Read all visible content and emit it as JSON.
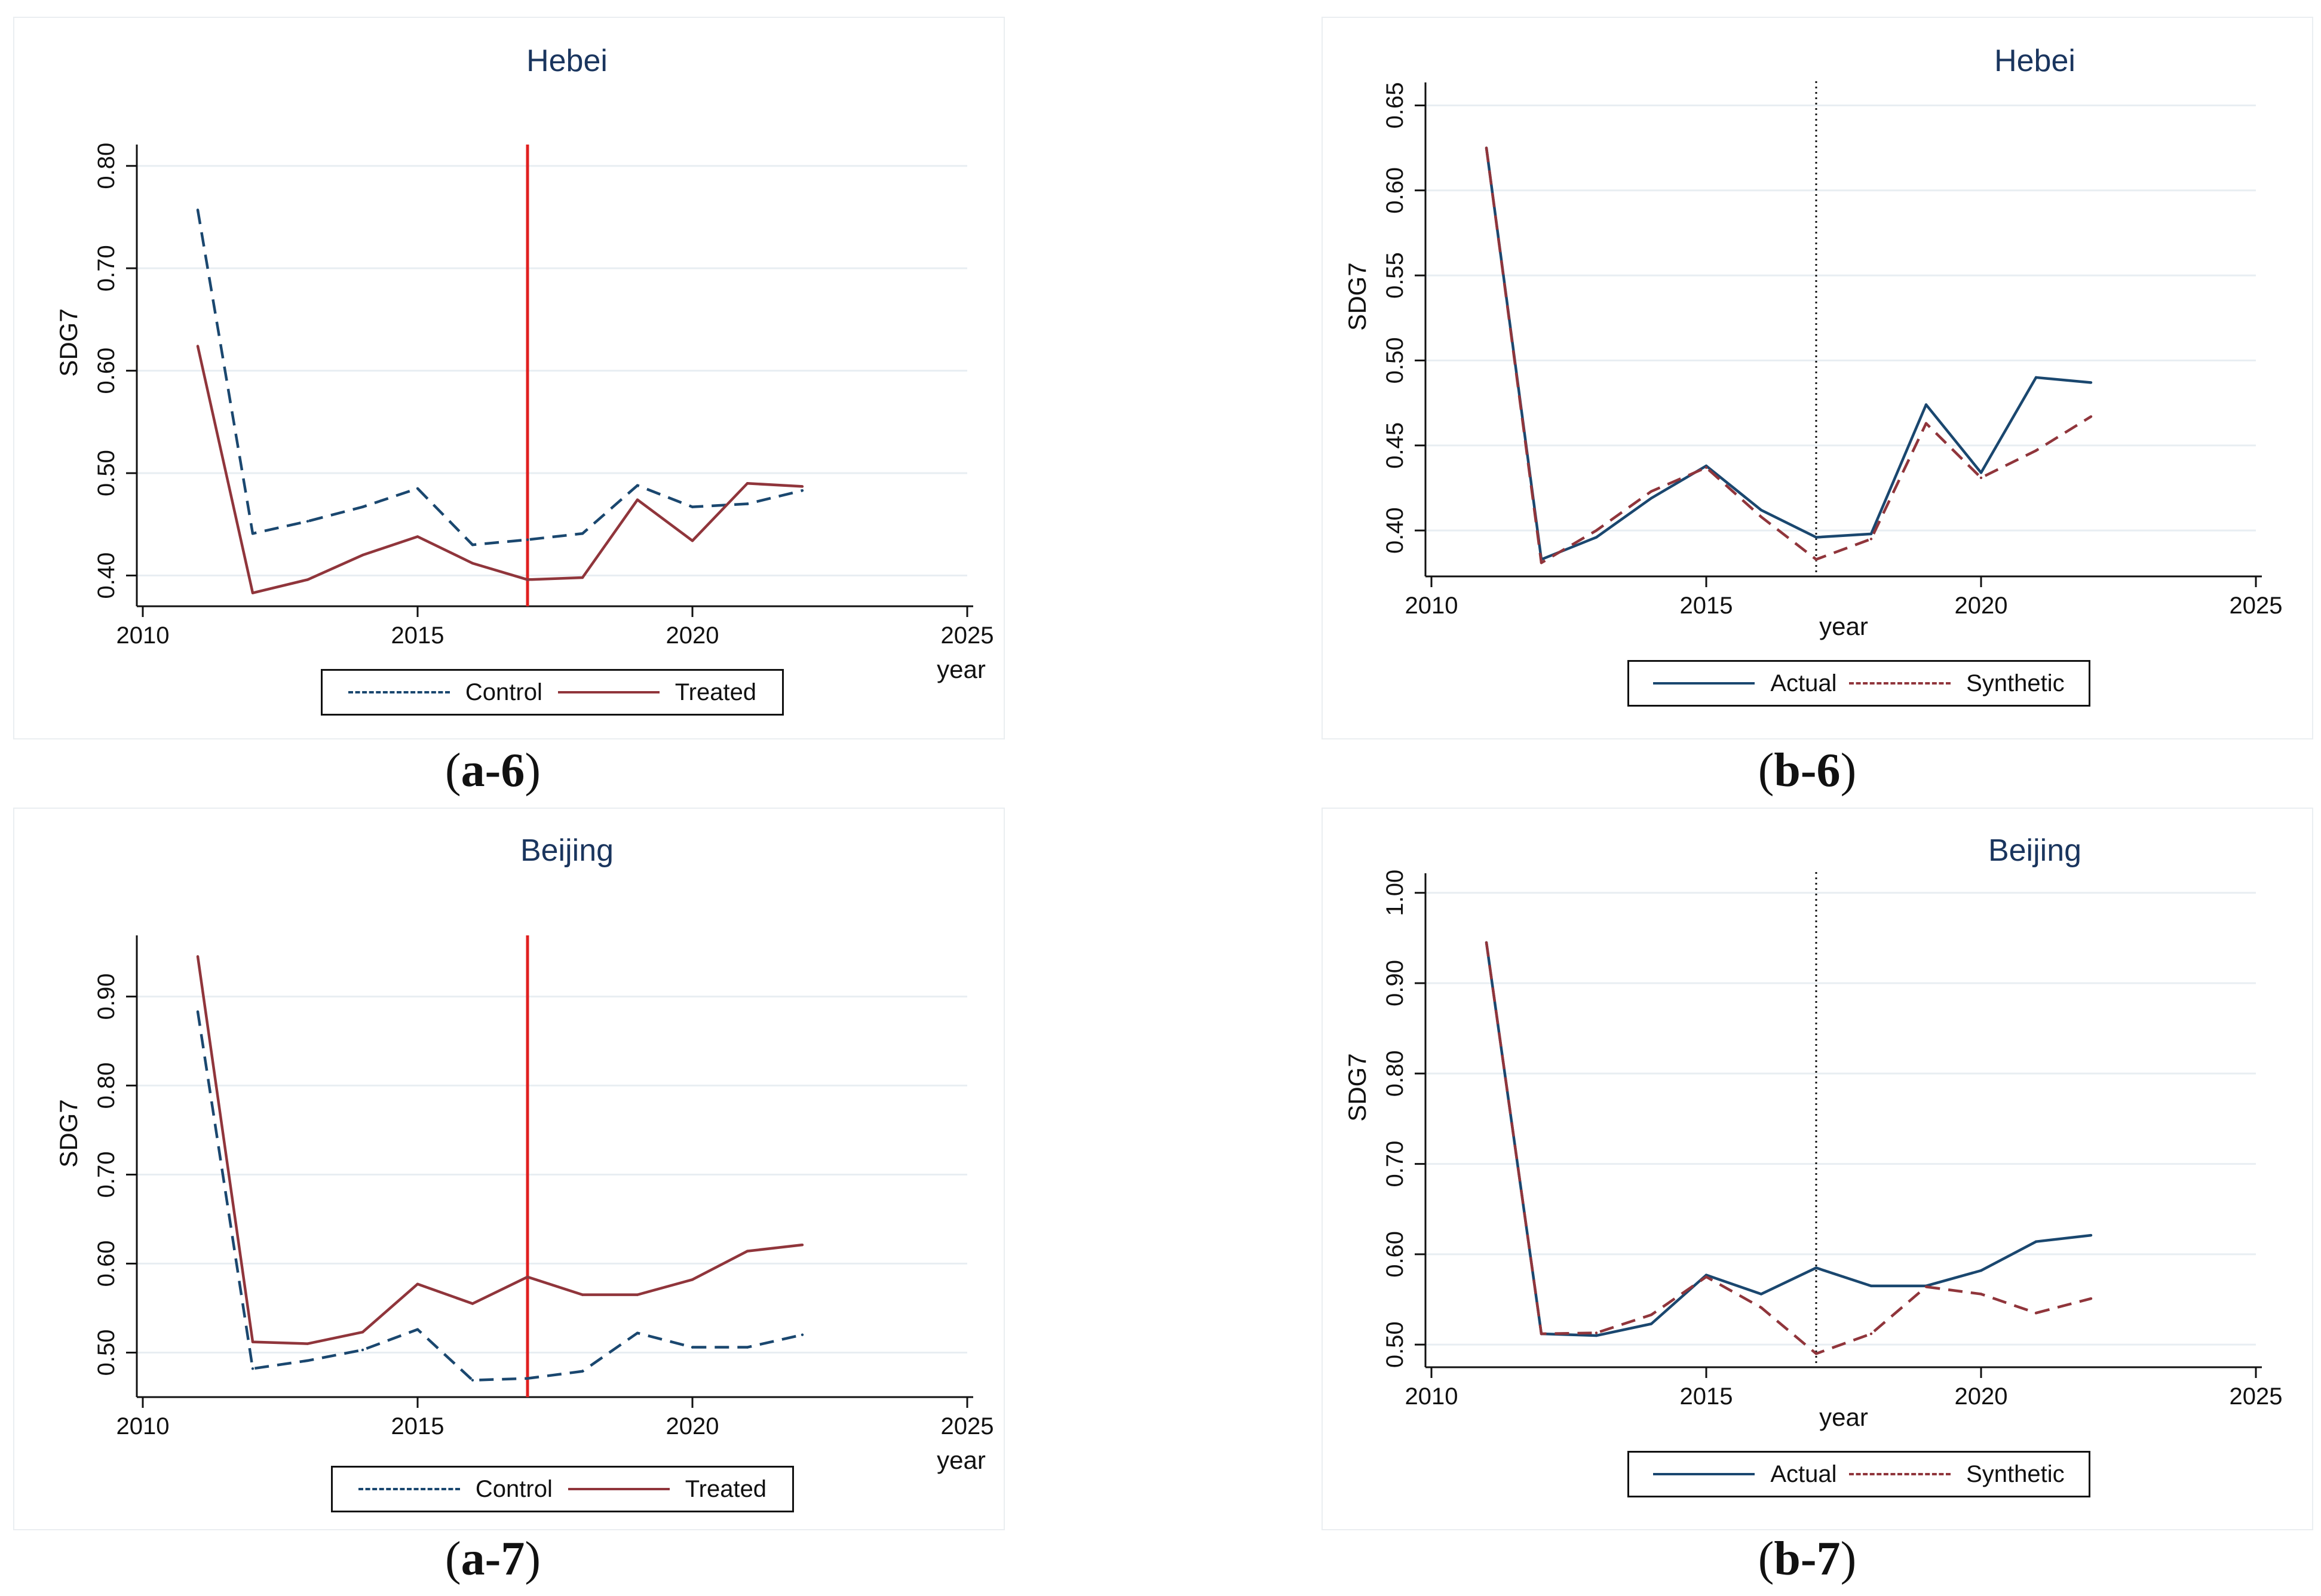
{
  "colors": {
    "navy": "#1a476f",
    "maroon": "#90353b",
    "red": "#e02020",
    "grid": "#e8eef2",
    "frame": "#eaeef1"
  },
  "captions": {
    "a6": {
      "label": "a-6"
    },
    "b6": {
      "label": "b-6"
    },
    "a7": {
      "label": "a-7"
    },
    "b7": {
      "label": "b-7"
    }
  },
  "chart_data": [
    {
      "id": "a6",
      "type": "line",
      "title": "Hebei",
      "xlabel": "year",
      "ylabel": "SDG7",
      "xlim": [
        2010,
        2025
      ],
      "ylim": [
        0.37,
        0.815
      ],
      "xticks": [
        2010,
        2015,
        2020,
        2025
      ],
      "yticks": [
        0.4,
        0.5,
        0.6,
        0.7,
        0.8
      ],
      "ytick_labels": [
        "0.40",
        "0.50",
        "0.60",
        "0.70",
        "0.80"
      ],
      "vline": {
        "x": 2017,
        "style": "solid-red"
      },
      "legend": {
        "position": "bottom",
        "entries": [
          "Control",
          "Treated"
        ]
      },
      "x": [
        2011,
        2012,
        2013,
        2014,
        2015,
        2016,
        2017,
        2018,
        2019,
        2020,
        2021,
        2022
      ],
      "series": [
        {
          "name": "Control",
          "style": "dashed",
          "color": "navy",
          "values": [
            0.757,
            0.441,
            0.453,
            0.467,
            0.485,
            0.43,
            0.435,
            0.441,
            0.488,
            0.467,
            0.47,
            0.483
          ]
        },
        {
          "name": "Treated",
          "style": "solid",
          "color": "maroon",
          "values": [
            0.624,
            0.383,
            0.396,
            0.42,
            0.438,
            0.412,
            0.396,
            0.398,
            0.474,
            0.434,
            0.49,
            0.487
          ]
        }
      ]
    },
    {
      "id": "b6",
      "type": "line",
      "title": "Hebei",
      "xlabel": "year",
      "ylabel": "SDG7",
      "xlim": [
        2010,
        2025
      ],
      "ylim": [
        0.373,
        0.66
      ],
      "xticks": [
        2010,
        2015,
        2020,
        2025
      ],
      "yticks": [
        0.4,
        0.45,
        0.5,
        0.55,
        0.6,
        0.65
      ],
      "ytick_labels": [
        "0.40",
        "0.45",
        "0.50",
        "0.55",
        "0.60",
        "0.65"
      ],
      "vline": {
        "x": 2017,
        "style": "dotted-black"
      },
      "legend": {
        "position": "bottom",
        "entries": [
          "Actual",
          "Synthetic"
        ]
      },
      "x": [
        2011,
        2012,
        2013,
        2014,
        2015,
        2016,
        2017,
        2018,
        2019,
        2020,
        2021,
        2022
      ],
      "series": [
        {
          "name": "Actual",
          "style": "solid",
          "color": "navy",
          "values": [
            0.625,
            0.383,
            0.396,
            0.419,
            0.438,
            0.412,
            0.396,
            0.398,
            0.474,
            0.434,
            0.49,
            0.487
          ]
        },
        {
          "name": "Synthetic",
          "style": "dashed",
          "color": "maroon",
          "values": [
            0.625,
            0.381,
            0.4,
            0.423,
            0.437,
            0.408,
            0.383,
            0.395,
            0.463,
            0.431,
            0.447,
            0.467
          ]
        }
      ]
    },
    {
      "id": "a7",
      "type": "line",
      "title": "Beijing",
      "xlabel": "year",
      "ylabel": "SDG7",
      "xlim": [
        2010,
        2025
      ],
      "ylim": [
        0.45,
        0.962
      ],
      "xticks": [
        2010,
        2015,
        2020,
        2025
      ],
      "yticks": [
        0.5,
        0.6,
        0.7,
        0.8,
        0.9
      ],
      "ytick_labels": [
        "0.50",
        "0.60",
        "0.70",
        "0.80",
        "0.90"
      ],
      "vline": {
        "x": 2017,
        "style": "solid-red"
      },
      "legend": {
        "position": "bottom",
        "entries": [
          "Control",
          "Treated"
        ]
      },
      "x": [
        2011,
        2012,
        2013,
        2014,
        2015,
        2016,
        2017,
        2018,
        2019,
        2020,
        2021,
        2022
      ],
      "series": [
        {
          "name": "Control",
          "style": "dashed",
          "color": "navy",
          "values": [
            0.883,
            0.482,
            0.491,
            0.503,
            0.526,
            0.469,
            0.471,
            0.479,
            0.522,
            0.506,
            0.506,
            0.52
          ]
        },
        {
          "name": "Treated",
          "style": "solid",
          "color": "maroon",
          "values": [
            0.945,
            0.512,
            0.51,
            0.523,
            0.577,
            0.555,
            0.585,
            0.565,
            0.565,
            0.582,
            0.614,
            0.621
          ]
        }
      ]
    },
    {
      "id": "b7",
      "type": "line",
      "title": "Beijing",
      "xlabel": "year",
      "ylabel": "SDG7",
      "xlim": [
        2010,
        2025
      ],
      "ylim": [
        0.475,
        1.015
      ],
      "xticks": [
        2010,
        2015,
        2020,
        2025
      ],
      "yticks": [
        0.5,
        0.6,
        0.7,
        0.8,
        0.9,
        1.0
      ],
      "ytick_labels": [
        "0.50",
        "0.60",
        "0.70",
        "0.80",
        "0.90",
        "1.00"
      ],
      "vline": {
        "x": 2017,
        "style": "dotted-black"
      },
      "legend": {
        "position": "bottom",
        "entries": [
          "Actual",
          "Synthetic"
        ]
      },
      "x": [
        2011,
        2012,
        2013,
        2014,
        2015,
        2016,
        2017,
        2018,
        2019,
        2020,
        2021,
        2022
      ],
      "series": [
        {
          "name": "Actual",
          "style": "solid",
          "color": "navy",
          "values": [
            0.945,
            0.512,
            0.51,
            0.523,
            0.577,
            0.556,
            0.585,
            0.565,
            0.565,
            0.582,
            0.614,
            0.621
          ]
        },
        {
          "name": "Synthetic",
          "style": "dashed",
          "color": "maroon",
          "values": [
            0.945,
            0.512,
            0.513,
            0.533,
            0.575,
            0.541,
            0.49,
            0.512,
            0.564,
            0.556,
            0.535,
            0.551
          ]
        }
      ]
    }
  ]
}
